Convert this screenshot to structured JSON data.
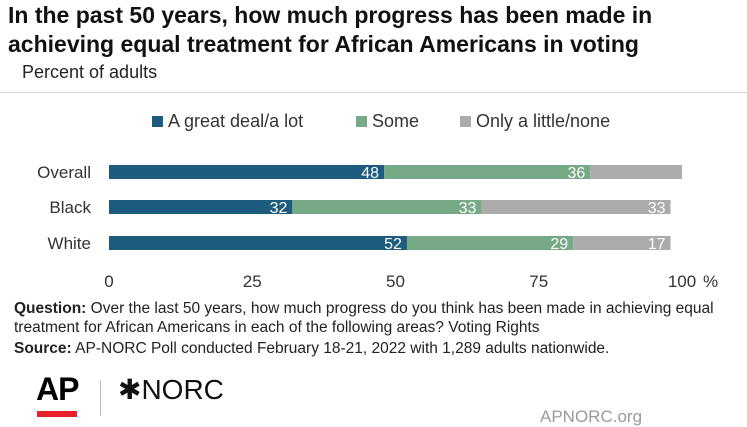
{
  "header": {
    "title": "In the past 50 years, how much progress has been made in achieving equal treatment for African Americans in voting",
    "subtitle": "Percent of adults"
  },
  "chart_data": {
    "type": "bar",
    "orientation": "horizontal",
    "stacked": true,
    "categories": [
      "Overall",
      "Black",
      "White"
    ],
    "series": [
      {
        "name": "A great deal/a lot",
        "values": [
          48,
          32,
          52
        ],
        "color": "#1d5c7e",
        "labels": [
          "48",
          "32",
          "52"
        ]
      },
      {
        "name": "Some",
        "values": [
          36,
          33,
          29
        ],
        "color": "#76a986",
        "labels": [
          "36",
          "33",
          "29"
        ]
      },
      {
        "name": "Only a little/none",
        "values": [
          16,
          33,
          17
        ],
        "color": "#ababab",
        "labels": [
          "",
          "33",
          "17"
        ]
      }
    ],
    "xlim": [
      0,
      100
    ],
    "xticks": [
      "0",
      "25",
      "50",
      "75",
      "100"
    ],
    "x_unit": "%",
    "legend": "top",
    "grid": false
  },
  "footer": {
    "question_lead": "Question:",
    "question_text": " Over the last 50 years, how much progress do you think has been made in achieving equal treatment for African Americans in each of the following areas? Voting Rights",
    "source_lead": "Source:",
    "source_text": " AP-NORC Poll conducted February 18-21, 2022 with 1,289 adults nationwide.",
    "ap_logo": "AP",
    "norc_logo": "✱NORC",
    "site": "APNORC.org"
  },
  "colors": {
    "ap_red": "#e8202a",
    "label_text": "#ffffff"
  }
}
